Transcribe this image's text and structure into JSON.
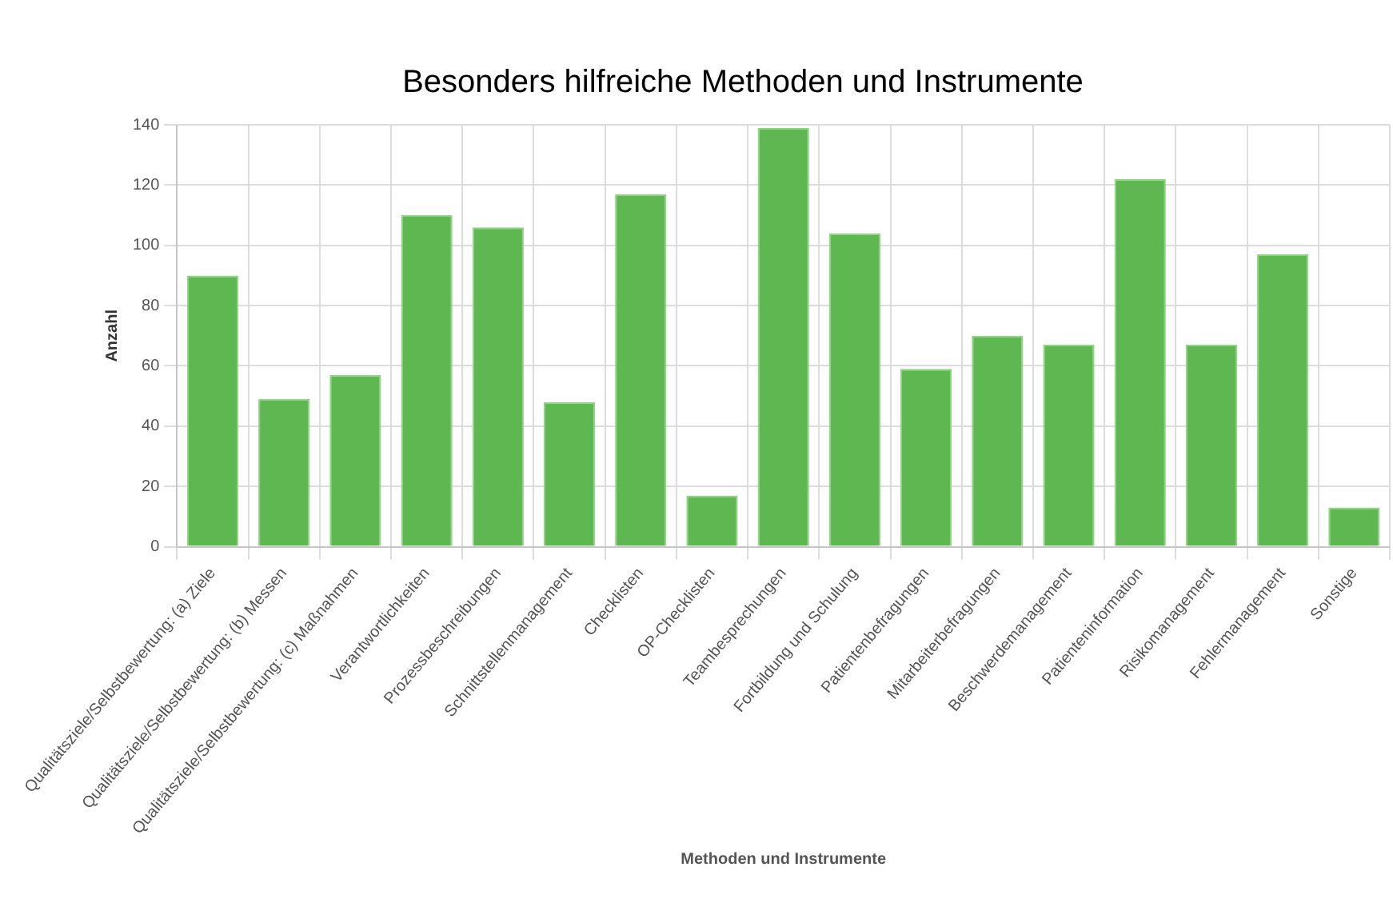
{
  "chart_data": {
    "type": "bar",
    "title": "Besonders hilfreiche Methoden und Instrumente",
    "xlabel": "Methoden und Instrumente",
    "ylabel": "Anzahl",
    "categories": [
      "Qualitätsziele/Selbstbewertung: (a) Ziele",
      "Qualitätsziele/Selbstbewertung: (b) Messen",
      "Qualitätsziele/Selbstbewertung: (c) Maßnahmen",
      "Verantwortlichkeiten",
      "Prozessbeschreibungen",
      "Schnittstellenmanagement",
      "Checklisten",
      "OP-Checklisten",
      "Teambesprechungen",
      "Fortbildung und Schulung",
      "Patientenbefragungen",
      "Mitarbeiterbefragungen",
      "Beschwerdemanagement",
      "Patienteninformation",
      "Risikomanagement",
      "Fehlermanagement",
      "Sonstige"
    ],
    "values": [
      90,
      49,
      57,
      110,
      106,
      48,
      117,
      17,
      139,
      104,
      59,
      70,
      67,
      122,
      67,
      97,
      13
    ],
    "color": "#5fb752",
    "ylim": [
      0,
      140
    ],
    "yticks": [
      0,
      20,
      40,
      60,
      80,
      100,
      120,
      140
    ],
    "grid": true
  }
}
